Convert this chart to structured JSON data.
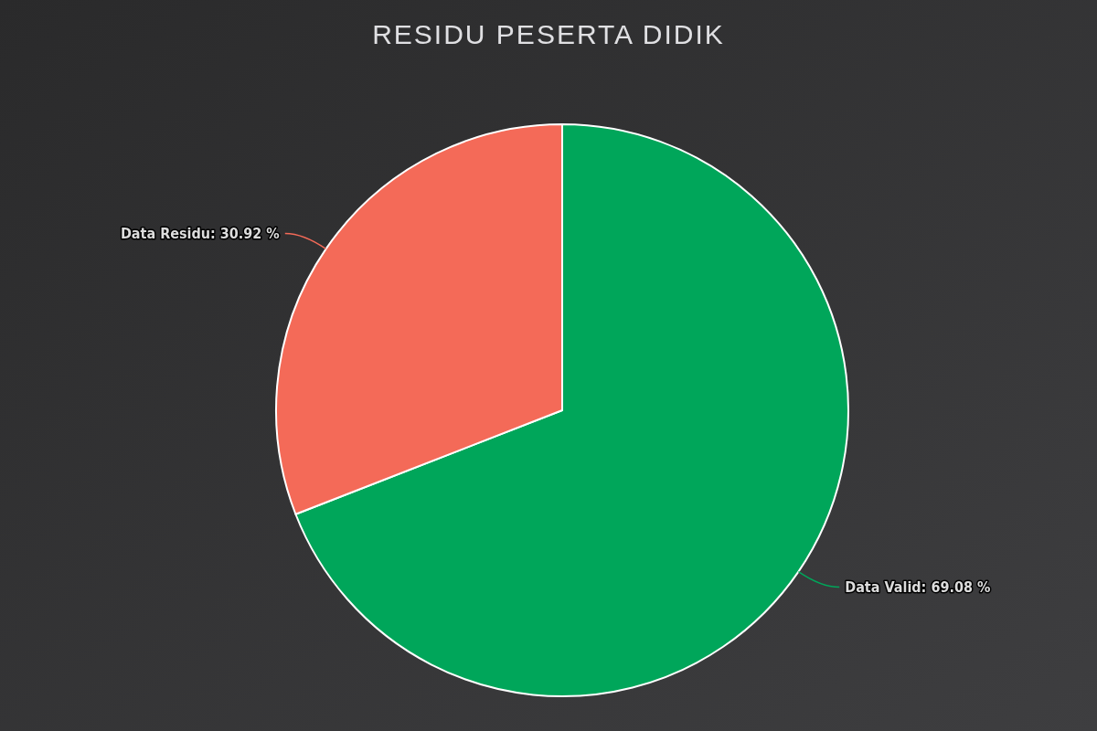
{
  "chart_data": {
    "type": "pie",
    "title": "RESIDU PESERTA DIDIK",
    "categories": [
      "Data Valid",
      "Data Residu"
    ],
    "values": [
      69.08,
      30.92
    ],
    "colors": [
      "#00a65a",
      "#f46a58"
    ],
    "value_labels": [
      "69.08 %",
      "30.92 %"
    ]
  }
}
